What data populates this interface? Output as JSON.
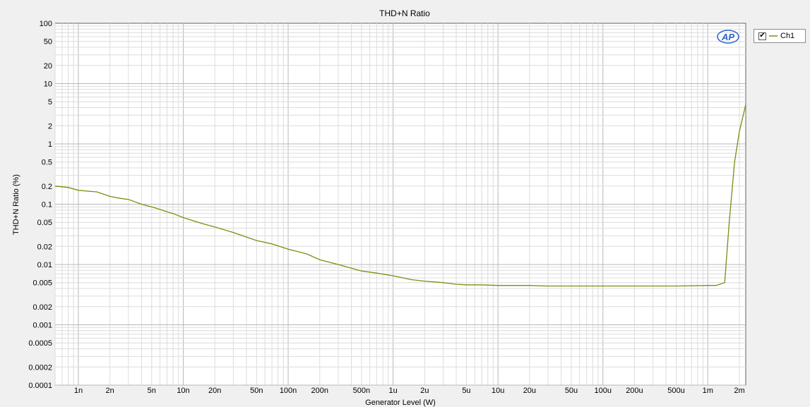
{
  "chart_data": {
    "type": "line",
    "title": "THD+N Ratio",
    "xlabel": "Generator Level (W)",
    "ylabel": "THD+N Ratio (%)",
    "xscale": "log",
    "yscale": "log",
    "xlim": [
      6e-10,
      0.0023
    ],
    "ylim": [
      0.0001,
      100
    ],
    "grid": true,
    "logo": "AP",
    "x_ticks": [
      {
        "value": 1e-09,
        "label": "1n"
      },
      {
        "value": 2e-09,
        "label": "2n"
      },
      {
        "value": 5e-09,
        "label": "5n"
      },
      {
        "value": 1e-08,
        "label": "10n"
      },
      {
        "value": 2e-08,
        "label": "20n"
      },
      {
        "value": 5e-08,
        "label": "50n"
      },
      {
        "value": 1e-07,
        "label": "100n"
      },
      {
        "value": 2e-07,
        "label": "200n"
      },
      {
        "value": 5e-07,
        "label": "500n"
      },
      {
        "value": 1e-06,
        "label": "1u"
      },
      {
        "value": 2e-06,
        "label": "2u"
      },
      {
        "value": 5e-06,
        "label": "5u"
      },
      {
        "value": 1e-05,
        "label": "10u"
      },
      {
        "value": 2e-05,
        "label": "20u"
      },
      {
        "value": 5e-05,
        "label": "50u"
      },
      {
        "value": 0.0001,
        "label": "100u"
      },
      {
        "value": 0.0002,
        "label": "200u"
      },
      {
        "value": 0.0005,
        "label": "500u"
      },
      {
        "value": 0.001,
        "label": "1m"
      },
      {
        "value": 0.002,
        "label": "2m"
      }
    ],
    "y_ticks": [
      {
        "value": 100,
        "label": "100"
      },
      {
        "value": 50,
        "label": "50"
      },
      {
        "value": 20,
        "label": "20"
      },
      {
        "value": 10,
        "label": "10"
      },
      {
        "value": 5,
        "label": "5"
      },
      {
        "value": 2,
        "label": "2"
      },
      {
        "value": 1,
        "label": "1"
      },
      {
        "value": 0.5,
        "label": "0.5"
      },
      {
        "value": 0.2,
        "label": "0.2"
      },
      {
        "value": 0.1,
        "label": "0.1"
      },
      {
        "value": 0.05,
        "label": "0.05"
      },
      {
        "value": 0.02,
        "label": "0.02"
      },
      {
        "value": 0.01,
        "label": "0.01"
      },
      {
        "value": 0.005,
        "label": "0.005"
      },
      {
        "value": 0.002,
        "label": "0.002"
      },
      {
        "value": 0.001,
        "label": "0.001"
      },
      {
        "value": 0.0005,
        "label": "0.0005"
      },
      {
        "value": 0.0002,
        "label": "0.0002"
      },
      {
        "value": 0.0001,
        "label": "0.0001"
      }
    ],
    "legend": {
      "position": "top-right",
      "checked": true
    },
    "series": [
      {
        "name": "Ch1",
        "color": "#7f8c0f",
        "x": [
          6e-10,
          8e-10,
          1e-09,
          1.2e-09,
          1.5e-09,
          2e-09,
          2.5e-09,
          3e-09,
          4e-09,
          5e-09,
          6e-09,
          7e-09,
          8e-09,
          1e-08,
          1.5e-08,
          2e-08,
          3e-08,
          5e-08,
          7e-08,
          1e-07,
          1.5e-07,
          2e-07,
          3e-07,
          5e-07,
          7e-07,
          1e-06,
          1.5e-06,
          2e-06,
          3e-06,
          4e-06,
          5e-06,
          7e-06,
          1e-05,
          1.5e-05,
          2e-05,
          3e-05,
          5e-05,
          7e-05,
          0.0001,
          0.0002,
          0.0005,
          0.001,
          0.0012,
          0.00145,
          0.0016,
          0.0018,
          0.002,
          0.0023
        ],
        "y": [
          0.2,
          0.19,
          0.17,
          0.165,
          0.16,
          0.135,
          0.125,
          0.12,
          0.1,
          0.09,
          0.082,
          0.075,
          0.07,
          0.06,
          0.048,
          0.042,
          0.034,
          0.025,
          0.022,
          0.018,
          0.015,
          0.012,
          0.01,
          0.0078,
          0.0072,
          0.0065,
          0.0056,
          0.0053,
          0.005,
          0.0047,
          0.0046,
          0.0046,
          0.0045,
          0.0045,
          0.0045,
          0.0044,
          0.0044,
          0.0044,
          0.0044,
          0.0044,
          0.0044,
          0.0045,
          0.0045,
          0.005,
          0.05,
          0.5,
          1.6,
          4.5
        ]
      }
    ]
  }
}
